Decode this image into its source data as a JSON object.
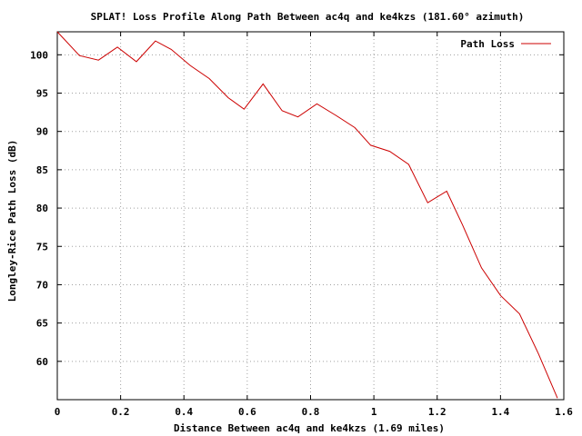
{
  "chart_data": {
    "type": "line",
    "title": "SPLAT! Loss Profile Along Path Between ac4q and ke4kzs (181.60° azimuth)",
    "xlabel": "Distance Between ac4q and ke4kzs (1.69 miles)",
    "ylabel": "Longley-Rice Path Loss (dB)",
    "xlim": [
      0,
      1.6
    ],
    "ylim": [
      55,
      103
    ],
    "xticks": [
      "0",
      "0.2",
      "0.4",
      "0.6",
      "0.8",
      "1",
      "1.2",
      "1.4",
      "1.6"
    ],
    "yticks": [
      "60",
      "65",
      "70",
      "75",
      "80",
      "85",
      "90",
      "95",
      "100"
    ],
    "grid": true,
    "legend_position": "top-right",
    "series": [
      {
        "name": "Path Loss",
        "color": "#cc0000",
        "x": [
          0,
          0.07,
          0.13,
          0.19,
          0.25,
          0.31,
          0.36,
          0.42,
          0.48,
          0.54,
          0.59,
          0.65,
          0.71,
          0.76,
          0.82,
          0.88,
          0.94,
          0.99,
          1.05,
          1.11,
          1.17,
          1.23,
          1.28,
          1.34,
          1.4,
          1.46,
          1.52,
          1.58
        ],
        "y": [
          103.0,
          99.9,
          99.3,
          101.0,
          99.1,
          101.8,
          100.7,
          98.6,
          96.9,
          94.4,
          92.9,
          96.2,
          92.7,
          91.9,
          93.6,
          92.1,
          90.5,
          88.2,
          87.4,
          85.7,
          80.7,
          82.2,
          77.8,
          72.2,
          68.6,
          66.2,
          61.0,
          55.2
        ]
      }
    ]
  }
}
